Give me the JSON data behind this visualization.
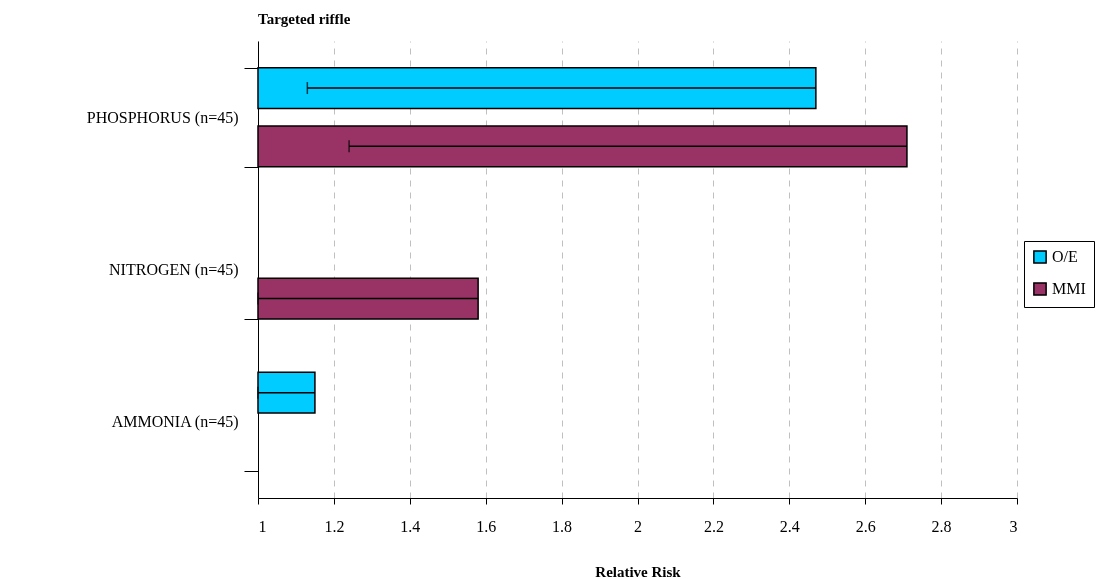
{
  "chart_data": {
    "type": "bar",
    "orientation": "horizontal",
    "title": "Targeted riffle",
    "xlabel": "Relative Risk",
    "categories": [
      "PHOSPHORUS (n=45)",
      "NITROGEN (n=45)",
      "AMMONIA (n=45)"
    ],
    "series": [
      {
        "name": "O/E",
        "color": "#00ccff",
        "values": [
          2.47,
          null,
          1.15
        ],
        "errors": [
          [
            1.13,
            2.47
          ],
          null,
          [
            1,
            1.15
          ]
        ]
      },
      {
        "name": "MMI",
        "color": "#993366",
        "values": [
          2.71,
          1.58,
          null
        ],
        "errors": [
          [
            1.24,
            2.71
          ],
          [
            1,
            1.58
          ],
          null
        ]
      }
    ],
    "xlim": [
      1,
      3
    ],
    "xticks": [
      1,
      1.2,
      1.4,
      1.6,
      1.8,
      2,
      2.2,
      2.4,
      2.6,
      2.8,
      3
    ],
    "grid": "x",
    "legend": "right"
  }
}
